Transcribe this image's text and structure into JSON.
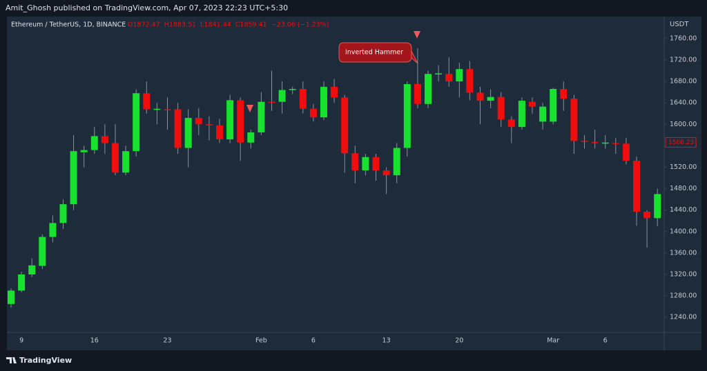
{
  "header": "Amit_Ghosh published on TradingView.com, Apr 07, 2023 22:23 UTC+5:30",
  "footer": "TradingView",
  "chart_data": {
    "type": "candlestick",
    "title": "Ethereum / TetherUS, 1D, BINANCE",
    "ohlc_legend": [
      "O1872.47",
      "H1883.51",
      "L1841.44",
      "C1859.41",
      "−23.06 (−1.23%)"
    ],
    "y_axis_label": "USDT",
    "annotation": "Inverted Hammer",
    "last_price": 1566.23,
    "up_color": "#18e22f",
    "down_color": "#f00d0d",
    "grid": false,
    "ylim": [
      1212,
      1801
    ],
    "yticks": [
      {
        "value": 1240,
        "label": "1240.00"
      },
      {
        "value": 1280,
        "label": "1280.00"
      },
      {
        "value": 1320,
        "label": "1320.00"
      },
      {
        "value": 1360,
        "label": "1360.00"
      },
      {
        "value": 1400,
        "label": "1400.00"
      },
      {
        "value": 1440,
        "label": "1440.00"
      },
      {
        "value": 1480,
        "label": "1480.00"
      },
      {
        "value": 1520,
        "label": "1520.00"
      },
      {
        "value": 1560,
        "label": "1560.00"
      },
      {
        "value": 1600,
        "label": "1600.00"
      },
      {
        "value": 1640,
        "label": "1640.00"
      },
      {
        "value": 1680,
        "label": "1680.00"
      },
      {
        "value": 1720,
        "label": "1720.00"
      },
      {
        "value": 1760,
        "label": "1760.00"
      }
    ],
    "categories": [
      null,
      "9",
      null,
      null,
      null,
      null,
      null,
      null,
      "16",
      null,
      null,
      null,
      null,
      null,
      null,
      "23",
      null,
      null,
      null,
      null,
      null,
      null,
      null,
      null,
      "Feb",
      null,
      null,
      null,
      null,
      "6",
      null,
      null,
      null,
      null,
      null,
      null,
      "13",
      null,
      null,
      null,
      null,
      null,
      null,
      "20",
      null,
      null,
      null,
      null,
      null,
      null,
      null,
      null,
      "Mar",
      null,
      null,
      null,
      null,
      "6",
      null,
      null,
      null,
      null,
      null
    ],
    "open": [
      1265,
      1290,
      1320,
      1336,
      1390,
      1416,
      1451,
      1548,
      1552,
      1578,
      1565,
      1510,
      1550,
      1658,
      1627,
      1628,
      1628,
      1556,
      1612,
      1600,
      1598,
      1572,
      1645,
      1566,
      1585,
      1642,
      1642,
      1664,
      1666,
      1629,
      1613,
      1670,
      1650,
      1546,
      1514,
      1539,
      1514,
      1505,
      1556,
      1675,
      1638,
      1693,
      1694,
      1680,
      1703,
      1659,
      1644,
      1651,
      1609,
      1595,
      1642,
      1605,
      1605,
      1666,
      1648,
      1569,
      1567,
      1564,
      1565,
      1564,
      1532,
      1437,
      1425
    ],
    "high": [
      1294,
      1325,
      1350,
      1395,
      1430,
      1460,
      1580,
      1560,
      1595,
      1600,
      1600,
      1560,
      1665,
      1680,
      1640,
      1650,
      1640,
      1628,
      1630,
      1615,
      1610,
      1655,
      1650,
      1590,
      1660,
      1700,
      1680,
      1670,
      1680,
      1638,
      1680,
      1685,
      1655,
      1560,
      1545,
      1545,
      1520,
      1565,
      1680,
      1742,
      1700,
      1710,
      1725,
      1715,
      1718,
      1670,
      1665,
      1660,
      1615,
      1650,
      1650,
      1640,
      1668,
      1680,
      1655,
      1580,
      1590,
      1580,
      1575,
      1575,
      1540,
      1440,
      1480
    ],
    "low": [
      1258,
      1287,
      1315,
      1330,
      1380,
      1405,
      1440,
      1520,
      1545,
      1545,
      1505,
      1505,
      1540,
      1620,
      1600,
      1590,
      1545,
      1520,
      1580,
      1570,
      1565,
      1565,
      1532,
      1555,
      1580,
      1625,
      1620,
      1656,
      1620,
      1605,
      1608,
      1640,
      1510,
      1490,
      1505,
      1495,
      1470,
      1490,
      1540,
      1630,
      1630,
      1680,
      1670,
      1650,
      1645,
      1600,
      1630,
      1595,
      1565,
      1590,
      1620,
      1590,
      1600,
      1625,
      1545,
      1555,
      1555,
      1555,
      1545,
      1525,
      1411,
      1370,
      1410
    ],
    "close": [
      1290,
      1320,
      1337,
      1390,
      1416,
      1451,
      1550,
      1552,
      1578,
      1565,
      1510,
      1550,
      1658,
      1628,
      1629,
      1627,
      1556,
      1612,
      1600,
      1598,
      1572,
      1645,
      1566,
      1585,
      1642,
      1640,
      1664,
      1666,
      1629,
      1613,
      1670,
      1650,
      1546,
      1514,
      1539,
      1514,
      1505,
      1556,
      1675,
      1638,
      1694,
      1695,
      1680,
      1703,
      1659,
      1644,
      1651,
      1609,
      1595,
      1644,
      1633,
      1633,
      1666,
      1648,
      1569,
      1567,
      1565,
      1566,
      1564,
      1532,
      1437,
      1425,
      1470
    ]
  }
}
